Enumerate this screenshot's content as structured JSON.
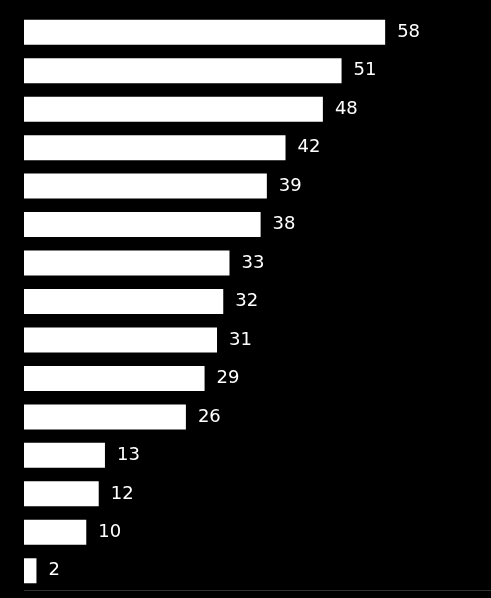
{
  "chart_data": {
    "type": "bar",
    "orientation": "horizontal",
    "categories": [
      null,
      null,
      null,
      null,
      null,
      null,
      null,
      null,
      null,
      null,
      null,
      null,
      null,
      null,
      null
    ],
    "values": [
      58,
      51,
      48,
      42,
      39,
      38,
      33,
      32,
      31,
      29,
      26,
      13,
      12,
      10,
      2
    ],
    "color": "#ffffff",
    "xlim": [
      0,
      75
    ],
    "grid": false,
    "data_labels": true,
    "tick_labels": false
  }
}
